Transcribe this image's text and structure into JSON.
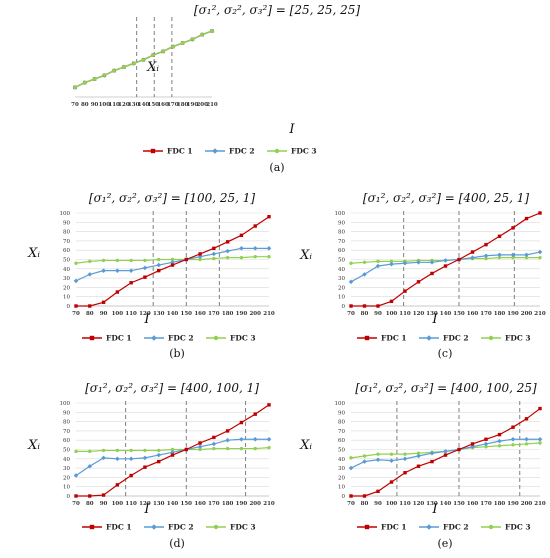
{
  "colors": {
    "fdc1": "#c00000",
    "fdc2": "#5b9bd5",
    "fdc3": "#92d050",
    "divider": "#7f7f7f",
    "grid": "#d9d9d9",
    "axis": "#bfbfbf"
  },
  "chart_data": [
    {
      "type": "line",
      "panel_label": "(a)",
      "title": "[σ₁², σ₂², σ₃²] = [25, 25, 25]",
      "xlabel": "I",
      "ylabel": "Xᵢ",
      "x": [
        70,
        80,
        90,
        100,
        110,
        120,
        130,
        140,
        150,
        160,
        170,
        180,
        190,
        200,
        210
      ],
      "xlim": [
        70,
        210
      ],
      "ylim": [
        15,
        80
      ],
      "y_ticks": [],
      "grid": false,
      "legend": "bottom",
      "vlines": [
        133,
        151,
        169
      ],
      "series": [
        {
          "name": "FDC 1",
          "values": [
            23,
            27,
            30,
            33,
            37,
            40,
            43,
            46,
            50,
            53,
            57,
            60,
            63,
            67,
            70
          ]
        },
        {
          "name": "FDC 2",
          "values": [
            23,
            27,
            30,
            33,
            37,
            40,
            43,
            46,
            50,
            53,
            57,
            60,
            63,
            67,
            70
          ]
        },
        {
          "name": "FDC 3",
          "values": [
            23,
            27,
            30,
            33,
            37,
            40,
            43,
            46,
            50,
            53,
            57,
            60,
            63,
            67,
            70
          ]
        }
      ]
    },
    {
      "type": "line",
      "panel_label": "(b)",
      "title": "[σ₁², σ₂², σ₃²] = [100, 25, 1]",
      "xlabel": "I",
      "ylabel": "Xᵢ",
      "x": [
        70,
        80,
        90,
        100,
        110,
        120,
        130,
        140,
        150,
        160,
        170,
        180,
        190,
        200,
        210
      ],
      "xlim": [
        70,
        210
      ],
      "ylim": [
        0,
        100
      ],
      "y_ticks": [
        0,
        10,
        20,
        30,
        40,
        50,
        60,
        70,
        80,
        90,
        100
      ],
      "grid": true,
      "legend": "bottom",
      "vlines": [
        126,
        150,
        174
      ],
      "series": [
        {
          "name": "FDC 1",
          "values": [
            0,
            0,
            4,
            15,
            25,
            31,
            38,
            44,
            50,
            56,
            62,
            69,
            76,
            86,
            96
          ]
        },
        {
          "name": "FDC 2",
          "values": [
            27,
            34,
            38,
            38,
            38,
            41,
            44,
            47,
            50,
            53,
            56,
            59,
            62,
            62,
            62
          ]
        },
        {
          "name": "FDC 3",
          "values": [
            46,
            48,
            49,
            49,
            49,
            49,
            50,
            50,
            50,
            50,
            51,
            52,
            52,
            53,
            53
          ]
        }
      ]
    },
    {
      "type": "line",
      "panel_label": "(c)",
      "title": "[σ₁², σ₂², σ₃²] = [400, 25, 1]",
      "xlabel": "I",
      "ylabel": "Xᵢ",
      "x": [
        70,
        80,
        90,
        100,
        110,
        120,
        130,
        140,
        150,
        160,
        170,
        180,
        190,
        200,
        210
      ],
      "xlim": [
        70,
        210
      ],
      "ylim": [
        0,
        100
      ],
      "y_ticks": [
        0,
        10,
        20,
        30,
        40,
        50,
        60,
        70,
        80,
        90,
        100
      ],
      "grid": true,
      "legend": "bottom",
      "vlines": [
        109,
        150,
        191
      ],
      "series": [
        {
          "name": "FDC 1",
          "values": [
            0,
            0,
            0,
            5,
            16,
            26,
            35,
            43,
            50,
            58,
            66,
            75,
            84,
            94,
            100
          ]
        },
        {
          "name": "FDC 2",
          "values": [
            26,
            34,
            43,
            45,
            46,
            47,
            47,
            49,
            50,
            52,
            54,
            55,
            55,
            55,
            58
          ]
        },
        {
          "name": "FDC 3",
          "values": [
            46,
            47,
            48,
            48,
            48,
            49,
            49,
            49,
            50,
            51,
            51,
            52,
            52,
            52,
            52
          ]
        }
      ]
    },
    {
      "type": "line",
      "panel_label": "(d)",
      "title": "[σ₁², σ₂², σ₃²] = [400, 100, 1]",
      "xlabel": "I",
      "ylabel": "Xᵢ",
      "x": [
        70,
        80,
        90,
        100,
        110,
        120,
        130,
        140,
        150,
        160,
        170,
        180,
        190,
        200,
        210
      ],
      "xlim": [
        70,
        210
      ],
      "ylim": [
        0,
        100
      ],
      "y_ticks": [
        0,
        10,
        20,
        30,
        40,
        50,
        60,
        70,
        80,
        90,
        100
      ],
      "grid": true,
      "legend": "bottom",
      "vlines": [
        106,
        150,
        193
      ],
      "series": [
        {
          "name": "FDC 1",
          "values": [
            0,
            0,
            1,
            12,
            22,
            31,
            37,
            44,
            50,
            57,
            63,
            70,
            79,
            88,
            98
          ]
        },
        {
          "name": "FDC 2",
          "values": [
            22,
            32,
            41,
            40,
            40,
            41,
            44,
            47,
            50,
            53,
            56,
            60,
            61,
            61,
            61
          ]
        },
        {
          "name": "FDC 3",
          "values": [
            48,
            48,
            49,
            49,
            49,
            49,
            49,
            50,
            50,
            50,
            51,
            51,
            51,
            51,
            52
          ]
        }
      ]
    },
    {
      "type": "line",
      "panel_label": "(e)",
      "title": "[σ₁², σ₂², σ₃²] = [400, 100, 25]",
      "xlabel": "I",
      "ylabel": "Xᵢ",
      "x": [
        70,
        80,
        90,
        100,
        110,
        120,
        130,
        140,
        150,
        160,
        170,
        180,
        190,
        200,
        210
      ],
      "xlim": [
        70,
        210
      ],
      "ylim": [
        0,
        100
      ],
      "y_ticks": [
        0,
        10,
        20,
        30,
        40,
        50,
        60,
        70,
        80,
        90,
        100
      ],
      "grid": true,
      "legend": "bottom",
      "vlines": [
        104,
        150,
        195
      ],
      "series": [
        {
          "name": "FDC 1",
          "values": [
            0,
            0,
            5,
            15,
            25,
            32,
            37,
            44,
            50,
            56,
            61,
            66,
            74,
            83,
            94
          ]
        },
        {
          "name": "FDC 2",
          "values": [
            30,
            37,
            39,
            38,
            40,
            43,
            46,
            48,
            50,
            53,
            56,
            59,
            61,
            61,
            61
          ]
        },
        {
          "name": "FDC 3",
          "values": [
            41,
            43,
            45,
            45,
            45,
            46,
            47,
            48,
            50,
            52,
            53,
            54,
            55,
            56,
            57
          ]
        }
      ]
    }
  ]
}
